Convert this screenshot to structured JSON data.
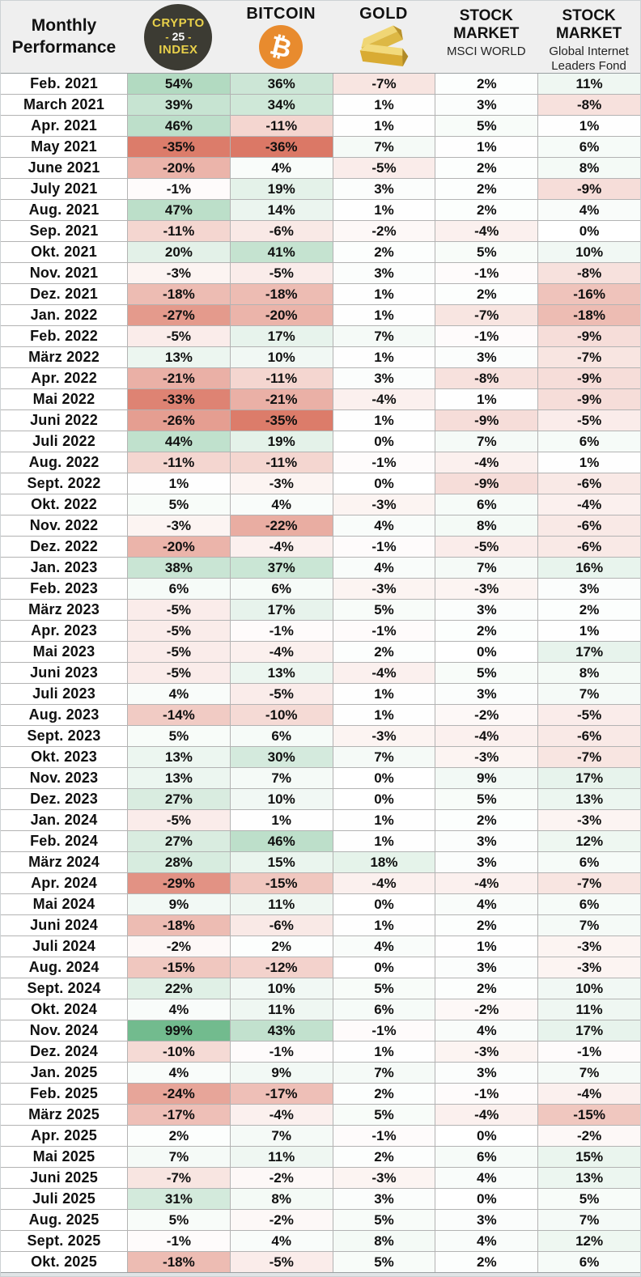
{
  "header": {
    "title": "Monthly Performance",
    "crypto_logo": {
      "line1": "CRYPTO",
      "dash": "-",
      "number": "25",
      "line3": "INDEX"
    },
    "bitcoin_label": "BITCOIN",
    "bitcoin_symbol": "₿",
    "gold_label": "GOLD",
    "msci_title": "STOCK MARKET",
    "msci_sub": "MSCI WORLD",
    "gilf_title": "STOCK MARKET",
    "gilf_sub": "Global Internet Leaders Fond"
  },
  "colors": {
    "header_bg": "#efefef",
    "grid_line": "#b3b3b3",
    "crypto_badge_bg": "#3c3b33",
    "crypto_badge_text": "#e8d04a",
    "bitcoin_orange": "#e88b2e",
    "text": "#101010"
  },
  "chart_data": {
    "type": "heatmap",
    "title": "Monthly Performance",
    "unit": "%",
    "legend_position": "top",
    "color_scale": {
      "min": -36,
      "mid": 0,
      "max": 99,
      "min_color": "#db7866",
      "mid_color": "#ffffff",
      "max_color": "#72bb8e"
    },
    "categories": [
      "Feb. 2021",
      "March 2021",
      "Apr. 2021",
      "May 2021",
      "June 2021",
      "July 2021",
      "Aug. 2021",
      "Sep. 2021",
      "Okt. 2021",
      "Nov. 2021",
      "Dez. 2021",
      "Jan. 2022",
      "Feb. 2022",
      "März 2022",
      "Apr. 2022",
      "Mai 2022",
      "Juni 2022",
      "Juli 2022",
      "Aug. 2022",
      "Sept. 2022",
      "Okt. 2022",
      "Nov. 2022",
      "Dez. 2022",
      "Jan. 2023",
      "Feb. 2023",
      "März 2023",
      "Apr. 2023",
      "Mai 2023",
      "Juni 2023",
      "Juli 2023",
      "Aug. 2023",
      "Sept. 2023",
      "Okt. 2023",
      "Nov. 2023",
      "Dez. 2023",
      "Jan. 2024",
      "Feb. 2024",
      "März 2024",
      "Apr. 2024",
      "Mai 2024",
      "Juni 2024",
      "Juli 2024",
      "Aug. 2024",
      "Sept. 2024",
      "Okt. 2024",
      "Nov. 2024",
      "Dez. 2024",
      "Jan. 2025",
      "Feb. 2025",
      "März 2025",
      "Apr. 2025",
      "Mai 2025",
      "Juni 2025",
      "Juli 2025",
      "Aug. 2025",
      "Sept. 2025",
      "Okt. 2025"
    ],
    "series": [
      {
        "name": "Crypto 25 Index",
        "values": [
          54,
          39,
          46,
          -35,
          -20,
          -1,
          47,
          -11,
          20,
          -3,
          -18,
          -27,
          -5,
          13,
          -21,
          -33,
          -26,
          44,
          -11,
          1,
          5,
          -3,
          -20,
          38,
          6,
          -5,
          -5,
          -5,
          -5,
          4,
          -14,
          5,
          13,
          13,
          27,
          -5,
          27,
          28,
          -29,
          9,
          -18,
          -2,
          -15,
          22,
          4,
          99,
          -10,
          4,
          -24,
          -17,
          2,
          7,
          -7,
          31,
          5,
          -1,
          -18
        ]
      },
      {
        "name": "Bitcoin",
        "values": [
          36,
          34,
          -11,
          -36,
          4,
          19,
          14,
          -6,
          41,
          -5,
          -18,
          -20,
          17,
          10,
          -11,
          -21,
          -35,
          19,
          -11,
          -3,
          4,
          -22,
          -4,
          37,
          6,
          17,
          -1,
          -4,
          13,
          -5,
          -10,
          6,
          30,
          7,
          10,
          1,
          46,
          15,
          -15,
          11,
          -6,
          2,
          -12,
          10,
          11,
          43,
          -1,
          9,
          -17,
          -4,
          7,
          11,
          -2,
          8,
          -2,
          4,
          -5
        ]
      },
      {
        "name": "Gold",
        "values": [
          -7,
          1,
          1,
          7,
          -5,
          3,
          1,
          -2,
          2,
          3,
          1,
          1,
          7,
          1,
          3,
          -4,
          1,
          0,
          -1,
          0,
          -3,
          4,
          -1,
          4,
          -3,
          5,
          -1,
          2,
          -4,
          1,
          1,
          -3,
          7,
          0,
          0,
          1,
          1,
          18,
          -4,
          0,
          1,
          4,
          0,
          5,
          6,
          -1,
          1,
          7,
          2,
          5,
          -1,
          2,
          -3,
          3,
          5,
          8,
          5
        ]
      },
      {
        "name": "Stock Market MSCI World",
        "values": [
          2,
          3,
          5,
          1,
          2,
          2,
          2,
          -4,
          5,
          -1,
          2,
          -7,
          -1,
          3,
          -8,
          1,
          -9,
          7,
          -4,
          -9,
          6,
          8,
          -5,
          7,
          -3,
          3,
          2,
          0,
          5,
          3,
          -2,
          -4,
          -3,
          9,
          5,
          2,
          3,
          3,
          -4,
          4,
          2,
          1,
          3,
          2,
          -2,
          4,
          -3,
          3,
          -1,
          -4,
          0,
          6,
          4,
          0,
          3,
          4,
          2
        ]
      },
      {
        "name": "Stock Market Global Internet Leaders Fond",
        "values": [
          11,
          -8,
          1,
          6,
          8,
          -9,
          4,
          0,
          10,
          -8,
          -16,
          -18,
          -9,
          -7,
          -9,
          -9,
          -5,
          6,
          1,
          -6,
          -4,
          -6,
          -6,
          16,
          3,
          2,
          1,
          17,
          8,
          7,
          -5,
          -6,
          -7,
          17,
          13,
          -3,
          12,
          6,
          -7,
          6,
          7,
          -3,
          -3,
          10,
          11,
          17,
          -1,
          7,
          -4,
          -15,
          -2,
          15,
          13,
          5,
          7,
          12,
          6
        ]
      }
    ]
  }
}
